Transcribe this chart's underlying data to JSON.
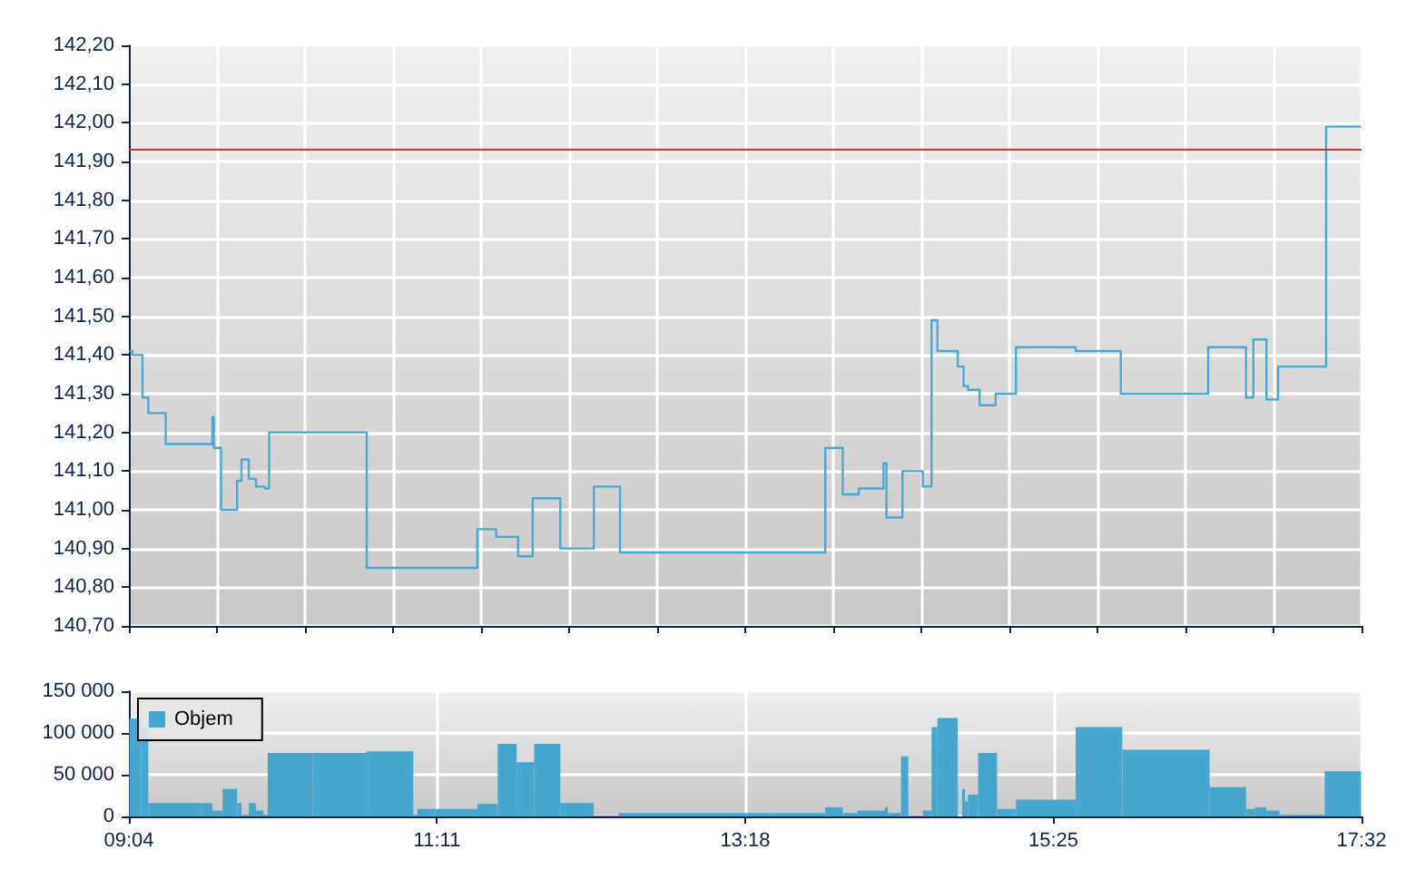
{
  "chart_data": [
    {
      "type": "step",
      "marker": "none",
      "color": "#4aa8d2",
      "grid": true,
      "tick_labels": "y",
      "x": [
        9.07,
        9.09,
        9.16,
        9.2,
        9.32,
        9.64,
        9.65,
        9.7,
        9.81,
        9.84,
        9.89,
        9.94,
        10.0,
        10.03,
        10.7,
        11.46,
        11.59,
        11.74,
        11.84,
        12.03,
        12.26,
        12.44,
        13.85,
        13.97,
        14.08,
        14.25,
        14.27,
        14.38,
        14.52,
        14.58,
        14.62,
        14.76,
        14.8,
        14.83,
        14.91,
        15.02,
        15.16,
        15.57,
        15.88,
        16.48,
        16.74,
        16.79,
        16.88,
        16.96,
        17.29,
        17.53
      ],
      "values": [
        141.41,
        141.4,
        141.29,
        141.25,
        141.17,
        141.24,
        141.16,
        141.0,
        141.075,
        141.13,
        141.08,
        141.06,
        141.055,
        141.2,
        140.85,
        140.95,
        140.93,
        140.88,
        141.03,
        140.9,
        141.06,
        140.89,
        141.16,
        141.04,
        141.055,
        141.12,
        140.98,
        141.1,
        141.06,
        141.49,
        141.41,
        141.37,
        141.32,
        141.31,
        141.27,
        141.3,
        141.42,
        141.41,
        141.3,
        141.42,
        141.29,
        141.44,
        141.285,
        141.37,
        141.99,
        141.99
      ],
      "xlim": [
        9.0667,
        17.5333
      ],
      "xticks": [
        {
          "value": 9.0667,
          "label": null
        },
        {
          "value": 9.6714,
          "label": null
        },
        {
          "value": 10.2762,
          "label": null
        },
        {
          "value": 10.881,
          "label": null
        },
        {
          "value": 11.4857,
          "label": null
        },
        {
          "value": 12.0905,
          "label": null
        },
        {
          "value": 12.6952,
          "label": null
        },
        {
          "value": 13.3,
          "label": null
        },
        {
          "value": 13.9048,
          "label": null
        },
        {
          "value": 14.5095,
          "label": null
        },
        {
          "value": 15.1143,
          "label": null
        },
        {
          "value": 15.719,
          "label": null
        },
        {
          "value": 16.3238,
          "label": null
        },
        {
          "value": 16.9286,
          "label": null
        },
        {
          "value": 17.5333,
          "label": null
        }
      ],
      "ylim": [
        140.7,
        142.2
      ],
      "yticks": [
        {
          "value": 140.7,
          "label": "140,70"
        },
        {
          "value": 140.8,
          "label": "140,80"
        },
        {
          "value": 140.9,
          "label": "140,90"
        },
        {
          "value": 141.0,
          "label": "141,00"
        },
        {
          "value": 141.1,
          "label": "141,10"
        },
        {
          "value": 141.2,
          "label": "141,20"
        },
        {
          "value": 141.3,
          "label": "141,30"
        },
        {
          "value": 141.4,
          "label": "141,40"
        },
        {
          "value": 141.5,
          "label": "141,50"
        },
        {
          "value": 141.6,
          "label": "141,60"
        },
        {
          "value": 141.7,
          "label": "141,70"
        },
        {
          "value": 141.8,
          "label": "141,80"
        },
        {
          "value": 141.9,
          "label": "141,90"
        },
        {
          "value": 142.0,
          "label": "142,00"
        },
        {
          "value": 142.1,
          "label": "142,10"
        },
        {
          "value": 142.2,
          "label": "142,20"
        }
      ],
      "ref_lines": [
        {
          "axis": "y",
          "value": 141.93,
          "color": "#cc3333"
        }
      ]
    },
    {
      "type": "histogram",
      "grid": true,
      "legend": "top left",
      "bins": [
        9.07,
        9.15,
        9.2,
        9.57,
        9.64,
        9.71,
        9.81,
        9.84,
        9.89,
        9.94,
        9.99,
        10.02,
        10.33,
        10.7,
        11.02,
        11.05,
        11.17,
        11.46,
        11.6,
        11.73,
        11.85,
        12.03,
        12.26,
        12.43,
        13.17,
        13.49,
        13.85,
        13.97,
        14.07,
        14.26,
        14.28,
        14.37,
        14.42,
        14.52,
        14.58,
        14.62,
        14.76,
        14.79,
        14.81,
        14.83,
        14.9,
        15.03,
        15.16,
        15.57,
        15.89,
        16.49,
        16.74,
        16.8,
        16.88,
        16.97,
        17.28,
        17.53
      ],
      "series": [
        {
          "name": "Objem",
          "color": "#46a6cd",
          "values": [
            117000,
            106000,
            16000,
            16000,
            7000,
            33000,
            16000,
            2000,
            16000,
            7000,
            2000,
            76000,
            76000,
            78000,
            2000,
            9000,
            9000,
            15000,
            87000,
            65000,
            87000,
            16000,
            1000,
            4000,
            4000,
            4000,
            11000,
            4000,
            7000,
            11000,
            4000,
            72000,
            1000,
            7000,
            107000,
            118000,
            null,
            33000,
            18000,
            26000,
            76000,
            9000,
            20000,
            107000,
            80000,
            35000,
            9000,
            11000,
            7000,
            2000,
            54000
          ]
        }
      ],
      "xlim": [
        9.0667,
        17.5333
      ],
      "xticks": [
        {
          "value": 9.0667,
          "label": "09:04"
        },
        {
          "value": 11.1833,
          "label": "11:11"
        },
        {
          "value": 13.3,
          "label": "13:18"
        },
        {
          "value": 15.4167,
          "label": "15:25"
        },
        {
          "value": 17.5333,
          "label": "17:32"
        }
      ],
      "ylim": [
        0,
        150000
      ],
      "yticks": [
        0,
        {
          "value": 50000,
          "label": "50 000"
        },
        {
          "value": 100000,
          "label": "100 000"
        },
        {
          "value": 150000,
          "label": "150 000"
        }
      ]
    }
  ]
}
